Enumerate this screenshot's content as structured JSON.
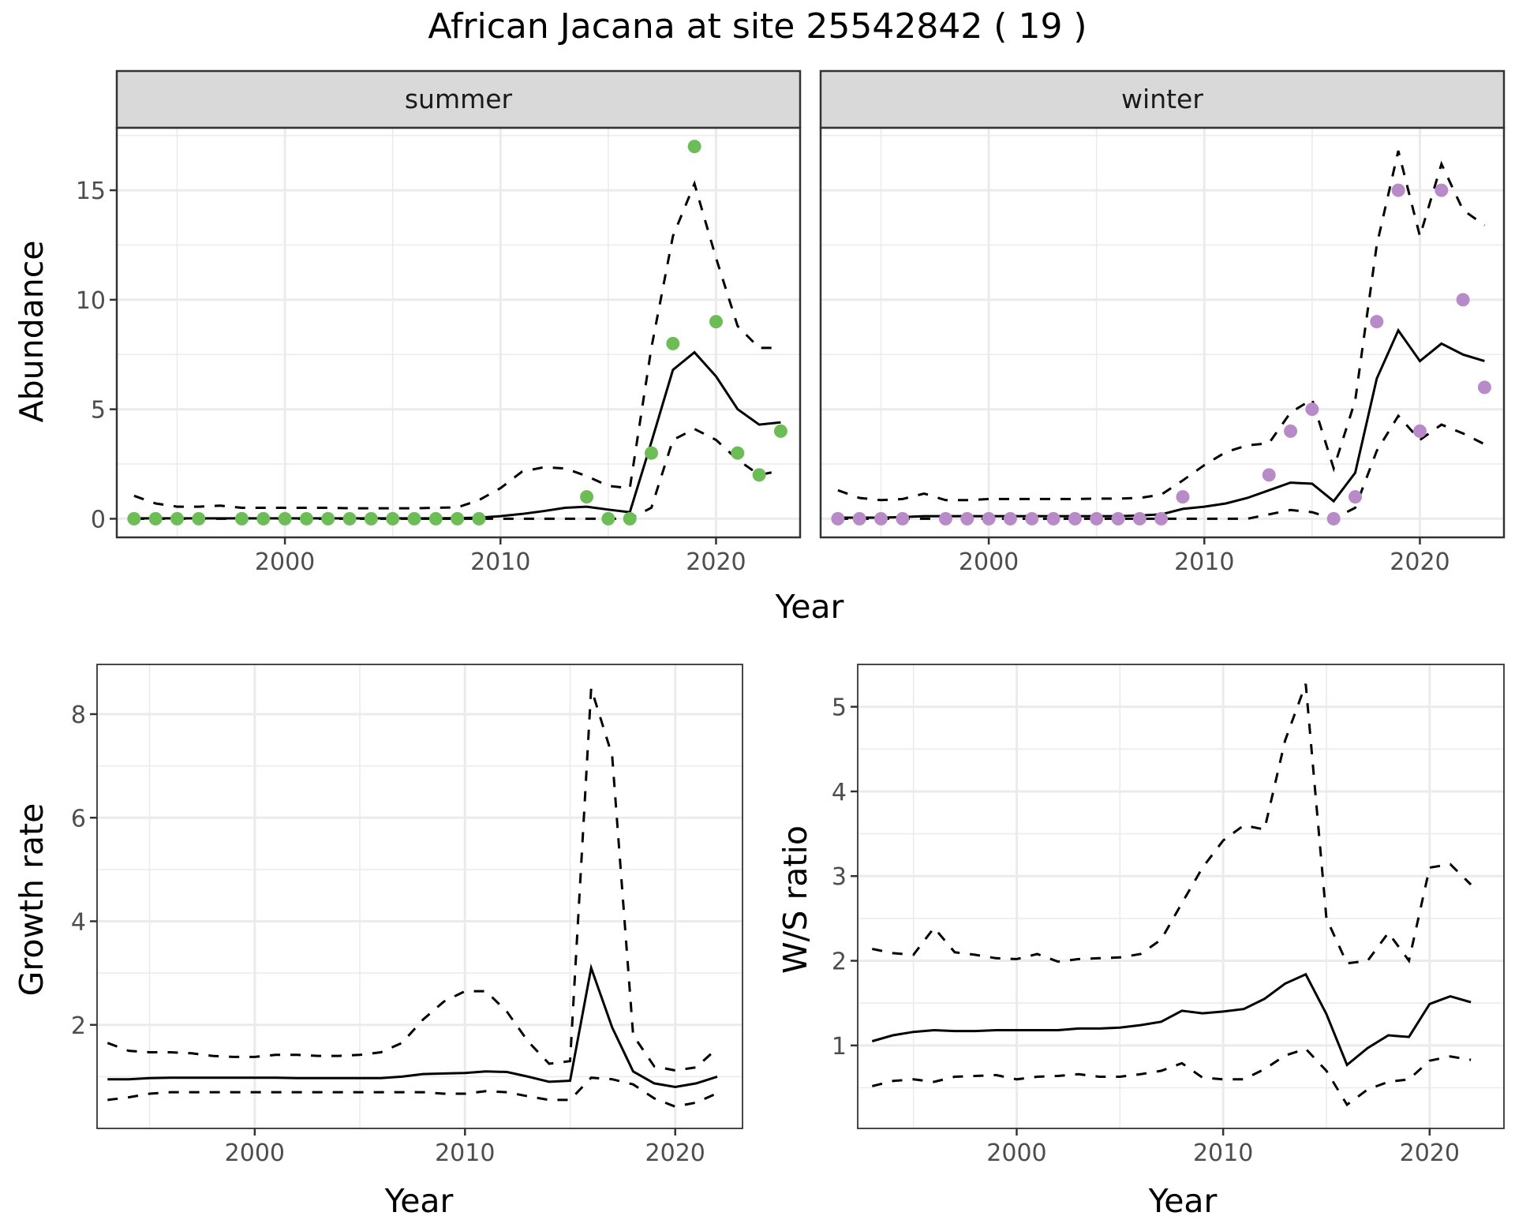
{
  "title": "African Jacana at site 25542842 ( 19 )",
  "colors": {
    "summer_points": "#6dbd57",
    "winter_points": "#b88ac8",
    "line": "#000000",
    "strip_bg": "#d9d9d9",
    "grid": "#ebebeb"
  },
  "chart_data": [
    {
      "type": "line",
      "panel": "abundance",
      "facets": [
        "summer",
        "winter"
      ],
      "xlabel": "Year",
      "ylabel": "Abundance",
      "xlim": [
        1992.2,
        2023.9
      ],
      "ylim": [
        -0.85,
        17.85
      ],
      "xticks": [
        2000,
        2010,
        2020
      ],
      "xtick_labels": [
        "2000",
        "2010",
        "2020"
      ],
      "yticks": [
        0,
        5,
        10,
        15
      ],
      "ytick_labels": [
        "0",
        "5",
        "10",
        "15"
      ],
      "grid": true,
      "summer": {
        "points_x": [
          1993,
          1994,
          1995,
          1996,
          1998,
          1999,
          2000,
          2001,
          2002,
          2003,
          2004,
          2005,
          2006,
          2007,
          2008,
          2009,
          2014,
          2015,
          2016,
          2017,
          2018,
          2019,
          2020,
          2021,
          2022,
          2023
        ],
        "points_y": [
          0,
          0,
          0,
          0,
          0,
          0,
          0,
          0,
          0,
          0,
          0,
          0,
          0,
          0,
          0,
          0,
          1,
          0,
          0,
          3,
          8,
          17,
          9,
          3,
          2,
          4
        ],
        "x": [
          1993,
          1994,
          1995,
          1996,
          1997,
          1998,
          1999,
          2000,
          2001,
          2002,
          2003,
          2004,
          2005,
          2006,
          2007,
          2008,
          2009,
          2010,
          2011,
          2012,
          2013,
          2014,
          2015,
          2016,
          2017,
          2018,
          2019,
          2020,
          2021,
          2022,
          2023
        ],
        "mean": [
          0.02,
          0.02,
          0.02,
          0.02,
          0.02,
          0.02,
          0.02,
          0.02,
          0.02,
          0.02,
          0.02,
          0.02,
          0.02,
          0.02,
          0.02,
          0.03,
          0.05,
          0.12,
          0.22,
          0.35,
          0.5,
          0.55,
          0.42,
          0.3,
          3.5,
          6.8,
          7.6,
          6.5,
          5.0,
          4.3,
          4.4
        ],
        "upper": [
          1.05,
          0.7,
          0.55,
          0.55,
          0.6,
          0.5,
          0.5,
          0.5,
          0.5,
          0.5,
          0.48,
          0.48,
          0.48,
          0.48,
          0.5,
          0.52,
          0.85,
          1.4,
          2.15,
          2.35,
          2.3,
          1.95,
          1.5,
          1.4,
          7.8,
          12.9,
          15.3,
          11.9,
          8.8,
          7.8,
          7.8
        ],
        "lower": [
          0,
          0,
          0,
          0,
          0,
          0,
          0,
          0,
          0,
          0,
          0,
          0,
          0,
          0,
          0,
          0,
          0,
          0,
          0,
          0,
          0,
          0,
          0,
          0,
          0.5,
          3.6,
          4.1,
          3.6,
          2.7,
          2.0,
          2.2
        ]
      },
      "winter": {
        "points_x": [
          1993,
          1994,
          1995,
          1996,
          1998,
          1999,
          2000,
          2001,
          2002,
          2003,
          2004,
          2005,
          2006,
          2007,
          2008,
          2009,
          2013,
          2014,
          2015,
          2016,
          2017,
          2018,
          2019,
          2020,
          2021,
          2022,
          2023
        ],
        "points_y": [
          0,
          0,
          0,
          0,
          0,
          0,
          0,
          0,
          0,
          0,
          0,
          0,
          0,
          0,
          0,
          1,
          2,
          4,
          5,
          0,
          1,
          9,
          15,
          4,
          15,
          10,
          6
        ],
        "x": [
          1993,
          1994,
          1995,
          1996,
          1997,
          1998,
          1999,
          2000,
          2001,
          2002,
          2003,
          2004,
          2005,
          2006,
          2007,
          2008,
          2009,
          2010,
          2011,
          2012,
          2013,
          2014,
          2015,
          2016,
          2017,
          2018,
          2019,
          2020,
          2021,
          2022,
          2023
        ],
        "mean": [
          0.05,
          0.05,
          0.05,
          0.08,
          0.12,
          0.12,
          0.12,
          0.12,
          0.12,
          0.12,
          0.12,
          0.12,
          0.12,
          0.12,
          0.15,
          0.2,
          0.45,
          0.55,
          0.7,
          0.95,
          1.3,
          1.65,
          1.6,
          0.8,
          2.1,
          6.4,
          8.6,
          7.2,
          8.0,
          7.5,
          7.2
        ],
        "upper": [
          1.3,
          0.95,
          0.85,
          0.9,
          1.15,
          0.85,
          0.85,
          0.9,
          0.9,
          0.9,
          0.9,
          0.9,
          0.92,
          0.92,
          0.95,
          1.1,
          1.75,
          2.45,
          3.05,
          3.35,
          3.45,
          4.85,
          5.45,
          2.3,
          5.4,
          12.5,
          16.8,
          12.9,
          16.2,
          14.1,
          13.4
        ],
        "lower": [
          0,
          0,
          0,
          0,
          0,
          0,
          0,
          0,
          0,
          0,
          0,
          0,
          0,
          0,
          0,
          0,
          0,
          0,
          0,
          0,
          0.2,
          0.4,
          0.3,
          0,
          0.5,
          3.1,
          4.7,
          3.6,
          4.3,
          3.9,
          3.4
        ]
      }
    },
    {
      "type": "line",
      "panel": "growth_rate",
      "xlabel": "Year",
      "ylabel": "Growth rate",
      "xlim": [
        1992.5,
        2023.2
      ],
      "ylim": [
        0.0,
        8.96
      ],
      "xticks": [
        2000,
        2010,
        2020
      ],
      "xtick_labels": [
        "2000",
        "2010",
        "2020"
      ],
      "yticks": [
        2,
        4,
        6,
        8
      ],
      "ytick_labels": [
        "2",
        "4",
        "6",
        "8"
      ],
      "grid": true,
      "x": [
        1993,
        1994,
        1995,
        1996,
        1997,
        1998,
        1999,
        2000,
        2001,
        2002,
        2003,
        2004,
        2005,
        2006,
        2007,
        2008,
        2009,
        2010,
        2011,
        2012,
        2013,
        2014,
        2015,
        2016,
        2017,
        2018,
        2019,
        2020,
        2021,
        2022
      ],
      "mean": [
        0.95,
        0.95,
        0.97,
        0.98,
        0.98,
        0.98,
        0.98,
        0.98,
        0.98,
        0.97,
        0.97,
        0.97,
        0.97,
        0.97,
        1.0,
        1.05,
        1.06,
        1.07,
        1.1,
        1.09,
        1.0,
        0.9,
        0.92,
        3.1,
        1.95,
        1.1,
        0.87,
        0.8,
        0.87,
        1.0
      ],
      "upper": [
        1.65,
        1.5,
        1.47,
        1.47,
        1.45,
        1.4,
        1.38,
        1.38,
        1.42,
        1.42,
        1.4,
        1.4,
        1.42,
        1.47,
        1.65,
        2.1,
        2.45,
        2.65,
        2.65,
        2.25,
        1.68,
        1.25,
        1.3,
        8.5,
        7.2,
        1.8,
        1.2,
        1.12,
        1.18,
        1.55
      ],
      "lower": [
        0.55,
        0.6,
        0.67,
        0.7,
        0.7,
        0.7,
        0.7,
        0.7,
        0.7,
        0.7,
        0.7,
        0.7,
        0.7,
        0.7,
        0.7,
        0.7,
        0.67,
        0.67,
        0.72,
        0.7,
        0.62,
        0.55,
        0.55,
        0.98,
        0.95,
        0.85,
        0.58,
        0.42,
        0.5,
        0.68
      ]
    },
    {
      "type": "line",
      "panel": "ws_ratio",
      "xlabel": "Year",
      "ylabel": "W/S ratio",
      "xlim": [
        1992.3,
        2023.6
      ],
      "ylim": [
        0.02,
        5.5
      ],
      "xticks": [
        2000,
        2010,
        2020
      ],
      "xtick_labels": [
        "2000",
        "2010",
        "2020"
      ],
      "yticks": [
        1,
        2,
        3,
        4,
        5
      ],
      "ytick_labels": [
        "1",
        "2",
        "3",
        "4",
        "5"
      ],
      "grid": true,
      "x": [
        1993,
        1994,
        1995,
        1996,
        1997,
        1998,
        1999,
        2000,
        2001,
        2002,
        2003,
        2004,
        2005,
        2006,
        2007,
        2008,
        2009,
        2010,
        2011,
        2012,
        2013,
        2014,
        2015,
        2016,
        2017,
        2018,
        2019,
        2020,
        2021,
        2022
      ],
      "mean": [
        1.05,
        1.12,
        1.16,
        1.18,
        1.17,
        1.17,
        1.18,
        1.18,
        1.18,
        1.18,
        1.2,
        1.2,
        1.21,
        1.24,
        1.28,
        1.41,
        1.38,
        1.4,
        1.43,
        1.55,
        1.73,
        1.84,
        1.37,
        0.77,
        0.97,
        1.12,
        1.1,
        1.49,
        1.58,
        1.51
      ],
      "upper": [
        2.14,
        2.09,
        2.07,
        2.39,
        2.1,
        2.07,
        2.03,
        2.02,
        2.08,
        1.99,
        2.02,
        2.03,
        2.04,
        2.08,
        2.25,
        2.68,
        3.1,
        3.42,
        3.6,
        3.55,
        4.6,
        5.27,
        2.5,
        1.97,
        2.0,
        2.33,
        2.0,
        3.1,
        3.14,
        2.9
      ],
      "lower": [
        0.52,
        0.58,
        0.6,
        0.57,
        0.63,
        0.64,
        0.65,
        0.6,
        0.63,
        0.64,
        0.66,
        0.63,
        0.63,
        0.66,
        0.7,
        0.79,
        0.62,
        0.6,
        0.6,
        0.72,
        0.88,
        0.96,
        0.7,
        0.3,
        0.48,
        0.57,
        0.6,
        0.82,
        0.87,
        0.83
      ]
    }
  ]
}
